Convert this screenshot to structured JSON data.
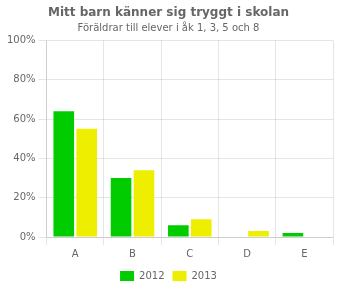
{
  "chart_data": {
    "type": "bar",
    "title": "Mitt barn känner sig tryggt i skolan",
    "subtitle": "Föräldrar till elever i åk 1, 3, 5 och 8",
    "categories": [
      "A",
      "B",
      "C",
      "D",
      "E"
    ],
    "series": [
      {
        "name": "2012",
        "color": "#00CC00",
        "values": [
          64,
          30,
          6,
          0,
          2
        ]
      },
      {
        "name": "2013",
        "color": "#EEEE00",
        "values": [
          55,
          34,
          9,
          3,
          0
        ]
      }
    ],
    "ylim": [
      0,
      100
    ],
    "yticks": [
      {
        "value": 0,
        "label": "0%"
      },
      {
        "value": 20,
        "label": "20%"
      },
      {
        "value": 40,
        "label": "40%"
      },
      {
        "value": 60,
        "label": "60%"
      },
      {
        "value": 80,
        "label": "80%"
      },
      {
        "value": 100,
        "label": "100%"
      }
    ],
    "grid": true,
    "legend": "bottom"
  }
}
